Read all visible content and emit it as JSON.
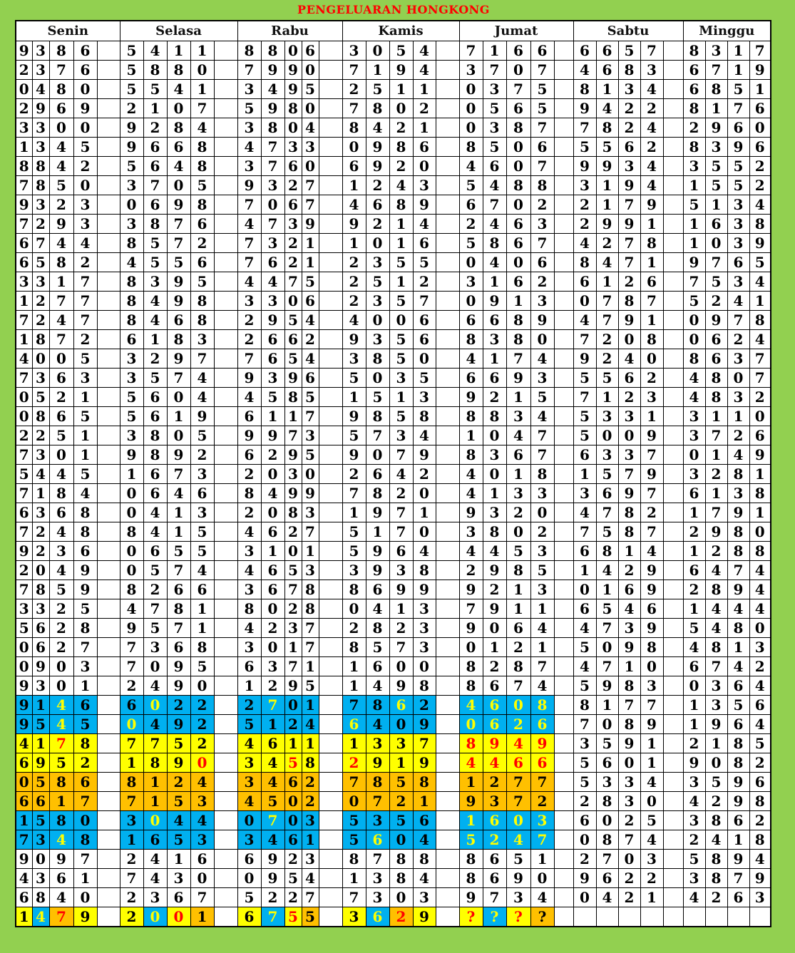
{
  "title": "PENGELUARAN HONGKONG",
  "days": [
    "Senin",
    "Selasa",
    "Rabu",
    "Kamis",
    "Jumat",
    "Sabtu",
    "Minggu"
  ],
  "colors": {
    "background": "#92d050",
    "title": "#ff0000",
    "bg": {
      "W": "#ffffff",
      "B": "#00b0f0",
      "Y": "#ffff00",
      "O": "#ffc000"
    },
    "fg": {
      "k": "#000000",
      "y": "#ffff00",
      "r": "#ff0000"
    }
  },
  "rows": [
    {
      "d": [
        "9386",
        "5411",
        "8806",
        "3054",
        "7166",
        "6657",
        "8317"
      ]
    },
    {
      "d": [
        "2376",
        "5880",
        "7990",
        "7194",
        "3707",
        "4683",
        "6719"
      ]
    },
    {
      "d": [
        "0480",
        "5541",
        "3495",
        "2511",
        "0375",
        "8134",
        "6851"
      ]
    },
    {
      "d": [
        "2969",
        "2107",
        "5980",
        "7802",
        "0565",
        "9422",
        "8176"
      ]
    },
    {
      "d": [
        "3300",
        "9284",
        "3804",
        "8421",
        "0387",
        "7824",
        "2960"
      ]
    },
    {
      "d": [
        "1345",
        "9668",
        "4733",
        "0986",
        "8506",
        "5562",
        "8396"
      ]
    },
    {
      "d": [
        "8842",
        "5648",
        "3760",
        "6920",
        "4607",
        "9934",
        "3552"
      ]
    },
    {
      "d": [
        "7850",
        "3705",
        "9327",
        "1243",
        "5488",
        "3194",
        "1552"
      ]
    },
    {
      "d": [
        "9323",
        "0698",
        "7067",
        "4689",
        "6702",
        "2179",
        "5134"
      ]
    },
    {
      "d": [
        "7293",
        "3876",
        "4739",
        "9214",
        "2463",
        "2991",
        "1638"
      ]
    },
    {
      "d": [
        "6744",
        "8572",
        "7321",
        "1016",
        "5867",
        "4278",
        "1039"
      ]
    },
    {
      "d": [
        "6582",
        "4556",
        "7621",
        "2355",
        "0406",
        "8471",
        "9765"
      ]
    },
    {
      "d": [
        "3317",
        "8395",
        "4475",
        "2512",
        "3162",
        "6126",
        "7534"
      ]
    },
    {
      "d": [
        "1277",
        "8498",
        "3306",
        "2357",
        "0913",
        "0787",
        "5241"
      ]
    },
    {
      "d": [
        "7247",
        "8468",
        "2954",
        "4006",
        "6689",
        "4791",
        "0978"
      ]
    },
    {
      "d": [
        "1872",
        "6183",
        "2662",
        "9356",
        "8380",
        "7208",
        "0624"
      ]
    },
    {
      "d": [
        "4005",
        "3297",
        "7654",
        "3850",
        "4174",
        "9240",
        "8637"
      ]
    },
    {
      "d": [
        "7363",
        "3574",
        "9396",
        "5035",
        "6693",
        "5562",
        "4807"
      ]
    },
    {
      "d": [
        "0521",
        "5604",
        "4585",
        "1513",
        "9215",
        "7123",
        "4832"
      ]
    },
    {
      "d": [
        "0865",
        "5619",
        "6117",
        "9858",
        "8834",
        "5331",
        "3110"
      ]
    },
    {
      "d": [
        "2251",
        "3805",
        "9973",
        "5734",
        "1047",
        "5009",
        "3726"
      ]
    },
    {
      "d": [
        "7301",
        "9892",
        "6295",
        "9079",
        "8367",
        "6337",
        "0149"
      ]
    },
    {
      "d": [
        "5445",
        "1673",
        "2030",
        "2642",
        "4018",
        "1579",
        "3281"
      ]
    },
    {
      "d": [
        "7184",
        "0646",
        "8499",
        "7820",
        "4133",
        "3697",
        "6138"
      ]
    },
    {
      "d": [
        "6368",
        "0413",
        "2083",
        "1971",
        "9320",
        "4782",
        "1791"
      ]
    },
    {
      "d": [
        "7248",
        "8415",
        "4627",
        "5170",
        "3802",
        "7587",
        "2980"
      ]
    },
    {
      "d": [
        "9236",
        "0655",
        "3101",
        "5964",
        "4453",
        "6814",
        "1288"
      ]
    },
    {
      "d": [
        "2049",
        "0574",
        "4653",
        "3938",
        "2985",
        "1429",
        "6474"
      ]
    },
    {
      "d": [
        "7859",
        "8266",
        "3678",
        "8699",
        "9213",
        "0169",
        "2894"
      ]
    },
    {
      "d": [
        "3325",
        "4781",
        "8028",
        "0413",
        "7911",
        "6546",
        "1444"
      ]
    },
    {
      "d": [
        "5628",
        "9571",
        "4237",
        "2823",
        "9064",
        "4739",
        "5480"
      ]
    },
    {
      "d": [
        "0627",
        "7368",
        "3017",
        "8573",
        "0121",
        "5098",
        "4813"
      ]
    },
    {
      "d": [
        "0903",
        "7095",
        "6371",
        "1600",
        "8287",
        "4710",
        "6742"
      ]
    },
    {
      "d": [
        "9301",
        "2490",
        "1295",
        "1498",
        "8674",
        "5983",
        "0364"
      ]
    },
    {
      "d": [
        "9146",
        "6022",
        "2701",
        "7862",
        "4608",
        "8177",
        "1356"
      ],
      "bg": [
        "BBBB",
        "BBBB",
        "BBBB",
        "BBBB",
        "BBBB",
        "WWWW",
        "WWWW"
      ],
      "fg": [
        "kkyk",
        "kykk",
        "kykk",
        "kkyk",
        "yyyy",
        "kkkk",
        "kkkk"
      ]
    },
    {
      "d": [
        "9545",
        "0492",
        "5124",
        "6409",
        "0626",
        "7089",
        "1964"
      ],
      "bg": [
        "BBBB",
        "BBBB",
        "BBBB",
        "BBBB",
        "BBBB",
        "WWWW",
        "WWWW"
      ],
      "fg": [
        "kkyk",
        "ykkk",
        "kkkk",
        "ykkk",
        "yyyy",
        "kkkk",
        "kkkk"
      ]
    },
    {
      "d": [
        "4178",
        "7752",
        "4611",
        "1337",
        "8949",
        "3591",
        "2185"
      ],
      "bg": [
        "YYYY",
        "YYYY",
        "YYYY",
        "YYYY",
        "YYYY",
        "WWWW",
        "WWWW"
      ],
      "fg": [
        "kkrk",
        "kkkk",
        "kkkk",
        "kkkk",
        "rrrr",
        "kkkk",
        "kkkk"
      ]
    },
    {
      "d": [
        "6952",
        "1890",
        "3458",
        "2919",
        "4466",
        "5601",
        "9082"
      ],
      "bg": [
        "YYYY",
        "YYYY",
        "YYYY",
        "YYYY",
        "YYYY",
        "WWWW",
        "WWWW"
      ],
      "fg": [
        "kkkk",
        "kkkr",
        "kkrk",
        "rkkk",
        "rrrr",
        "kkkk",
        "kkkk"
      ]
    },
    {
      "d": [
        "0586",
        "8124",
        "3462",
        "7858",
        "1277",
        "5334",
        "3596"
      ],
      "bg": [
        "OOOO",
        "OOOO",
        "OOOO",
        "OOOO",
        "OOOO",
        "WWWW",
        "WWWW"
      ],
      "fg": [
        "kkkk",
        "kkkk",
        "kkkk",
        "kkkk",
        "kkkk",
        "kkkk",
        "kkkk"
      ]
    },
    {
      "d": [
        "6617",
        "7153",
        "4502",
        "0721",
        "9372",
        "2830",
        "4298"
      ],
      "bg": [
        "OOOO",
        "OOOO",
        "OOOO",
        "OOOO",
        "OOOO",
        "WWWW",
        "WWWW"
      ],
      "fg": [
        "kkkk",
        "kkkk",
        "kkkk",
        "kkkk",
        "kkkk",
        "kkkk",
        "kkkk"
      ]
    },
    {
      "d": [
        "1580",
        "3044",
        "0703",
        "5356",
        "1603",
        "6025",
        "3862"
      ],
      "bg": [
        "BBBB",
        "BBBB",
        "BBBB",
        "BBBB",
        "BBBB",
        "WWWW",
        "WWWW"
      ],
      "fg": [
        "kkkk",
        "kykk",
        "kykk",
        "kkkk",
        "yyyy",
        "kkkk",
        "kkkk"
      ]
    },
    {
      "d": [
        "7348",
        "1653",
        "3461",
        "5604",
        "5247",
        "0874",
        "2418"
      ],
      "bg": [
        "BBBB",
        "BBBB",
        "BBBB",
        "BBBB",
        "BBBB",
        "WWWW",
        "WWWW"
      ],
      "fg": [
        "kkyk",
        "kkkk",
        "kkkk",
        "kykk",
        "yyyy",
        "kkkk",
        "kkkk"
      ]
    },
    {
      "d": [
        "9097",
        "2416",
        "6923",
        "8788",
        "8651",
        "2703",
        "5894"
      ]
    },
    {
      "d": [
        "4361",
        "7430",
        "0954",
        "1384",
        "8690",
        "9622",
        "3879"
      ]
    },
    {
      "d": [
        "6840",
        "2367",
        "5227",
        "7303",
        "9734",
        "0421",
        "4263"
      ]
    },
    {
      "d": [
        "1479",
        "2001",
        "6755",
        "3629",
        "????",
        "",
        ""
      ],
      "bg": [
        "YBOY",
        "YBYO",
        "YBYO",
        "YBOY",
        "YBYO",
        "WWWW",
        "WWWW"
      ],
      "fg": [
        "kyrk",
        "kyrk",
        "kyrk",
        "kyrk",
        "ryrk",
        "kkkk",
        "kkkk"
      ]
    }
  ]
}
